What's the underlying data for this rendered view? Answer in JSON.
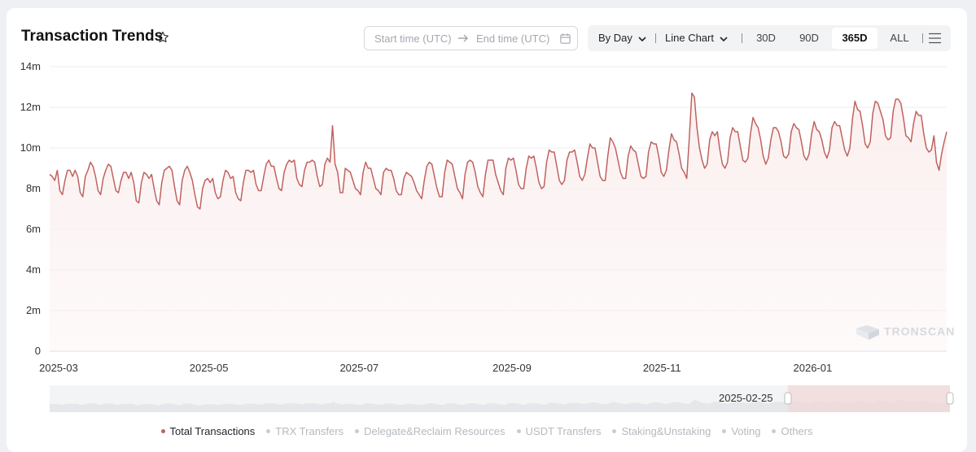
{
  "header": {
    "title": "Transaction Trends"
  },
  "date_range": {
    "start_placeholder": "Start time (UTC)",
    "end_placeholder": "End time (UTC)"
  },
  "controls": {
    "interval": "By Day",
    "chart_type": "Line Chart",
    "ranges": [
      "30D",
      "90D",
      "365D",
      "ALL"
    ],
    "active_range": "365D"
  },
  "watermark": "TRONSCAN",
  "data_zoom": {
    "start_label": "2025-02-25",
    "window_start": 0.82,
    "window_end": 1.0
  },
  "legend": [
    {
      "label": "Total Transactions",
      "active": true
    },
    {
      "label": "TRX Transfers",
      "active": false
    },
    {
      "label": "Delegate&Reclaim Resources",
      "active": false
    },
    {
      "label": "USDT Transfers",
      "active": false
    },
    {
      "label": "Staking&Unstaking",
      "active": false
    },
    {
      "label": "Voting",
      "active": false
    },
    {
      "label": "Others",
      "active": false
    }
  ],
  "colors": {
    "line": "#c0625f",
    "area": "#fbeeee",
    "grid": "#eceef1",
    "active_dot": "#c0625f"
  },
  "chart_data": {
    "type": "area",
    "x_start": "2025-02-25",
    "x_end": "2026-02-24",
    "x_ticks": [
      "2025-03",
      "2025-05",
      "2025-07",
      "2025-09",
      "2025-11",
      "2026-01"
    ],
    "y_ticks": [
      "0",
      "2m",
      "4m",
      "6m",
      "8m",
      "10m",
      "12m",
      "14m"
    ],
    "ylim": [
      0,
      14000000
    ],
    "grid": true,
    "series": [
      {
        "name": "Total Transactions",
        "values": [
          8.7,
          8.6,
          8.4,
          8.9,
          7.9,
          7.7,
          8.4,
          8.9,
          8.9,
          8.6,
          8.9,
          8.6,
          7.8,
          7.6,
          8.6,
          8.9,
          9.3,
          9.1,
          8.6,
          7.9,
          7.7,
          8.5,
          8.9,
          9.2,
          9.1,
          8.5,
          7.9,
          7.8,
          8.4,
          8.8,
          8.8,
          8.5,
          8.8,
          8.3,
          7.4,
          7.3,
          8.3,
          8.8,
          8.7,
          8.5,
          8.7,
          8.0,
          7.4,
          7.2,
          8.3,
          8.9,
          9.0,
          9.1,
          8.9,
          8.1,
          7.4,
          7.2,
          8.4,
          8.9,
          9.1,
          8.8,
          8.4,
          7.7,
          7.1,
          7.0,
          8.0,
          8.4,
          8.5,
          8.3,
          8.5,
          7.8,
          7.5,
          7.6,
          8.4,
          8.9,
          8.8,
          8.5,
          8.6,
          7.8,
          7.5,
          7.4,
          8.3,
          8.9,
          8.9,
          8.8,
          8.9,
          8.2,
          7.9,
          7.9,
          8.6,
          9.2,
          9.4,
          9.1,
          9.1,
          8.5,
          8.0,
          7.9,
          8.8,
          9.2,
          9.4,
          9.3,
          9.4,
          8.5,
          8.2,
          8.1,
          8.9,
          9.3,
          9.3,
          9.4,
          9.3,
          8.6,
          8.1,
          8.2,
          9.2,
          9.5,
          9.3,
          11.1,
          9.2,
          8.8,
          7.8,
          7.8,
          9.0,
          8.9,
          8.8,
          8.4,
          8.0,
          7.9,
          7.7,
          8.8,
          9.3,
          9.0,
          9.0,
          8.5,
          8.0,
          7.9,
          7.7,
          8.8,
          9.0,
          8.9,
          8.9,
          8.5,
          7.9,
          7.7,
          7.7,
          8.5,
          8.8,
          8.7,
          8.6,
          8.3,
          7.9,
          7.7,
          7.5,
          8.4,
          9.1,
          9.3,
          9.2,
          8.6,
          8.0,
          7.6,
          7.6,
          8.8,
          9.4,
          9.3,
          9.2,
          8.6,
          8.0,
          7.8,
          7.5,
          8.7,
          9.3,
          9.4,
          9.3,
          8.8,
          8.1,
          7.8,
          7.6,
          8.7,
          9.4,
          9.4,
          9.4,
          8.7,
          8.3,
          7.9,
          7.7,
          9.0,
          9.5,
          9.4,
          9.5,
          8.9,
          8.2,
          8.0,
          8.0,
          9.0,
          9.6,
          9.5,
          9.6,
          9.0,
          8.3,
          8.0,
          8.1,
          9.3,
          9.9,
          9.8,
          9.8,
          9.1,
          8.4,
          8.2,
          8.4,
          9.4,
          9.8,
          9.8,
          9.9,
          9.3,
          8.6,
          8.4,
          8.7,
          9.5,
          10.2,
          10.0,
          10.0,
          9.3,
          8.6,
          8.4,
          8.4,
          9.6,
          10.5,
          10.3,
          10.0,
          9.4,
          8.8,
          8.5,
          8.5,
          9.6,
          10.1,
          9.9,
          9.8,
          9.2,
          8.6,
          8.5,
          8.6,
          9.8,
          10.3,
          10.2,
          10.2,
          9.6,
          8.8,
          8.6,
          8.9,
          9.9,
          10.7,
          10.4,
          10.3,
          9.7,
          9.0,
          8.8,
          8.5,
          10.5,
          12.7,
          12.5,
          11.0,
          10.0,
          9.4,
          9.0,
          9.2,
          10.4,
          10.8,
          10.6,
          10.8,
          9.9,
          9.2,
          9.0,
          9.3,
          10.5,
          11.0,
          10.8,
          10.8,
          10.1,
          9.4,
          9.3,
          9.5,
          10.7,
          11.5,
          11.2,
          11.0,
          10.4,
          9.6,
          9.2,
          9.5,
          10.4,
          11.0,
          11.0,
          10.8,
          10.3,
          9.6,
          9.5,
          9.7,
          10.8,
          11.2,
          11.0,
          10.9,
          10.3,
          9.6,
          9.4,
          9.7,
          10.7,
          11.3,
          10.9,
          10.8,
          10.4,
          9.8,
          9.5,
          9.9,
          11.0,
          11.3,
          11.1,
          11.1,
          10.5,
          9.9,
          9.6,
          10.0,
          11.4,
          12.3,
          11.9,
          11.8,
          11.1,
          10.2,
          10.0,
          10.3,
          11.7,
          12.3,
          12.2,
          11.8,
          11.4,
          10.6,
          10.4,
          10.5,
          11.8,
          12.4,
          12.4,
          12.2,
          11.5,
          10.6,
          10.5,
          10.3,
          11.2,
          11.8,
          11.6,
          11.6,
          10.7,
          10.0,
          9.8,
          9.9,
          10.6,
          9.3,
          8.9,
          9.7,
          10.3,
          10.8
        ]
      }
    ]
  }
}
